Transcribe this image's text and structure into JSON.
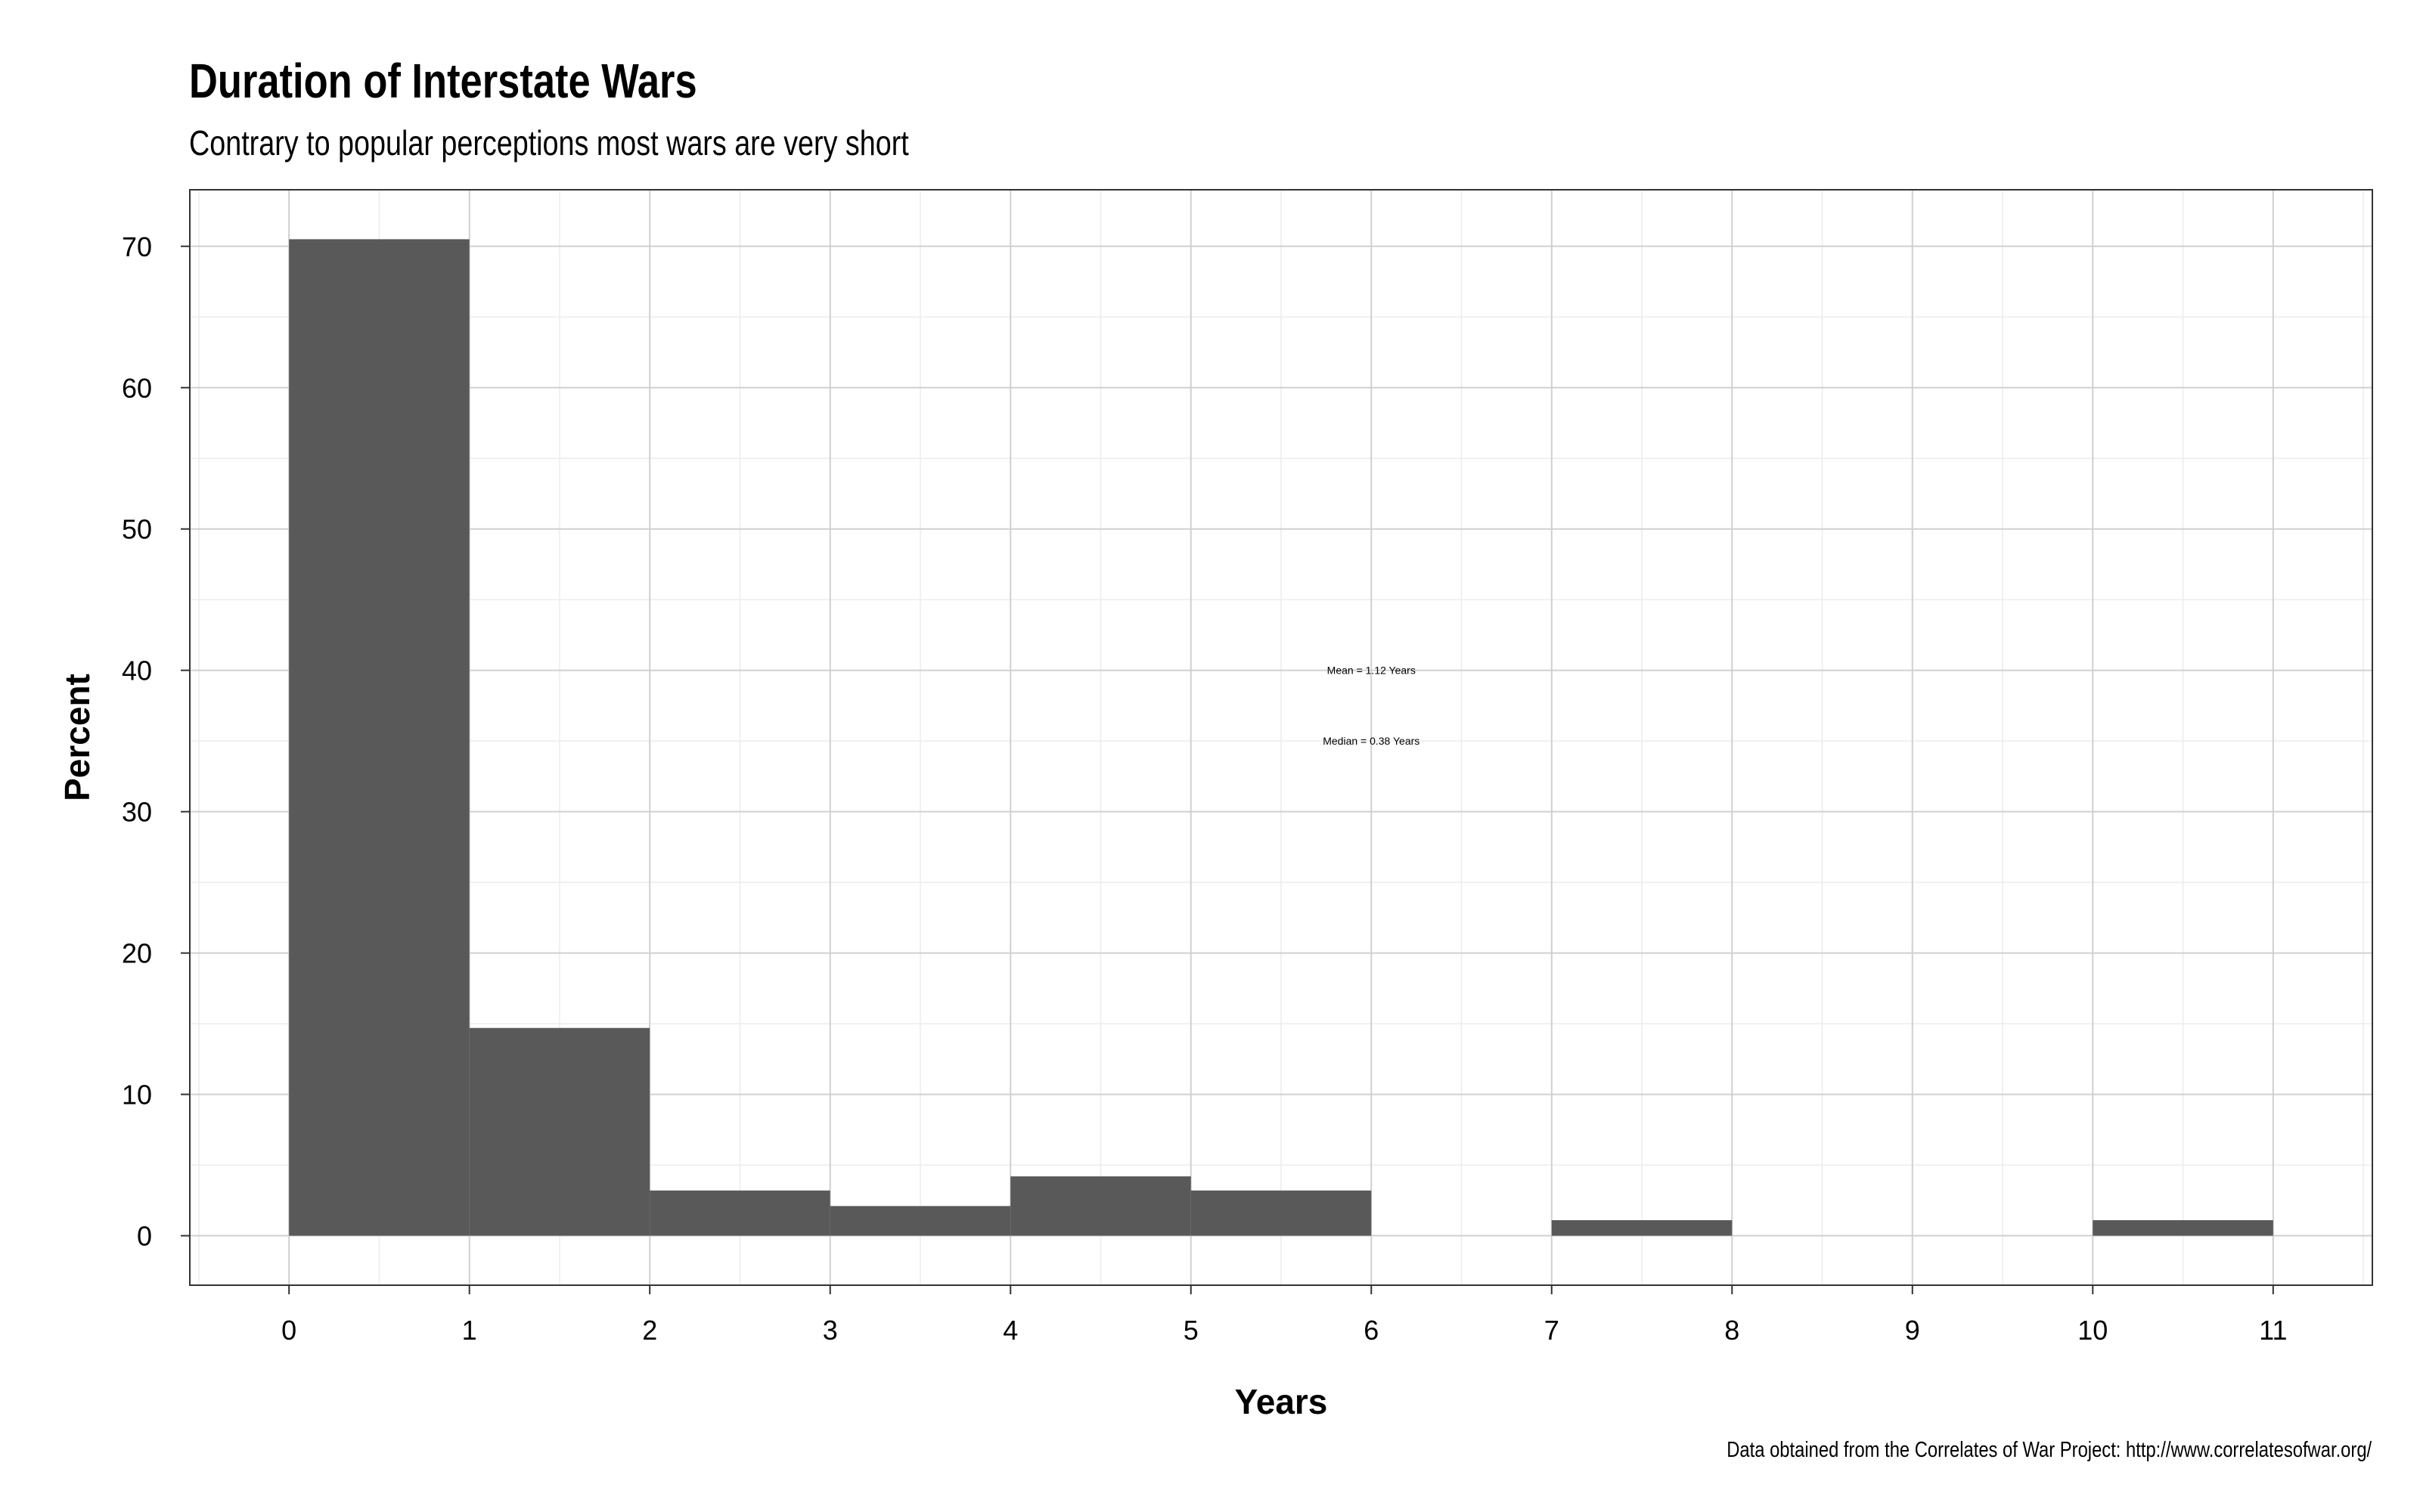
{
  "chart_data": {
    "type": "bar",
    "title": "Duration of Interstate Wars",
    "subtitle": "Contrary to popular perceptions most wars are very short",
    "xlabel": "Years",
    "ylabel": "Percent",
    "caption": "Data obtained from the Correlates of War Project: http://www.correlatesofwar.org/",
    "bins": [
      {
        "x0": 0,
        "x1": 1,
        "value": 70.5
      },
      {
        "x0": 1,
        "x1": 2,
        "value": 14.7
      },
      {
        "x0": 2,
        "x1": 3,
        "value": 3.2
      },
      {
        "x0": 3,
        "x1": 4,
        "value": 2.1
      },
      {
        "x0": 4,
        "x1": 5,
        "value": 4.2
      },
      {
        "x0": 5,
        "x1": 6,
        "value": 3.2
      },
      {
        "x0": 6,
        "x1": 7,
        "value": 0
      },
      {
        "x0": 7,
        "x1": 8,
        "value": 1.1
      },
      {
        "x0": 8,
        "x1": 9,
        "value": 0
      },
      {
        "x0": 9,
        "x1": 10,
        "value": 0
      },
      {
        "x0": 10,
        "x1": 11,
        "value": 1.1
      }
    ],
    "xticks": [
      0,
      1,
      2,
      3,
      4,
      5,
      6,
      7,
      8,
      9,
      10,
      11
    ],
    "yticks": [
      0,
      10,
      20,
      30,
      40,
      50,
      60,
      70
    ],
    "xlim": [
      -0.55,
      11.55
    ],
    "ylim": [
      -3.5,
      74
    ],
    "grid": true,
    "bar_color": "#595959",
    "annotations": [
      {
        "text": "Mean = 1.12 Years",
        "x": 6.0,
        "y": 40
      },
      {
        "text": "Median = 0.38 Years",
        "x": 6.0,
        "y": 35
      }
    ]
  }
}
